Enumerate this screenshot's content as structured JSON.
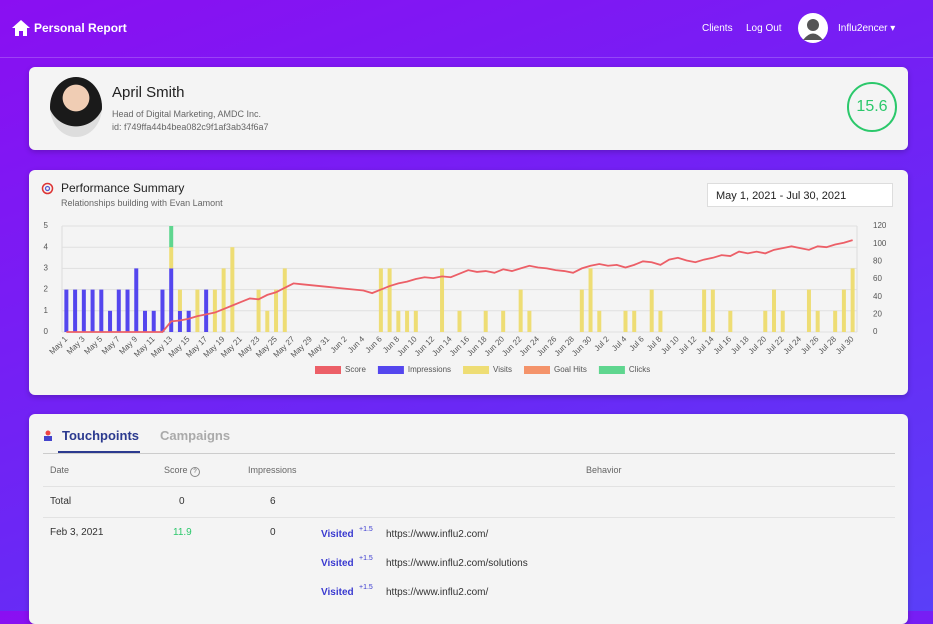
{
  "nav": {
    "brand": "Personal Report",
    "links": [
      "Clients",
      "Log Out"
    ],
    "user": "Influ2encer"
  },
  "profile": {
    "name": "April Smith",
    "role": "Head of Digital Marketing, AMDC Inc.",
    "id": "id: f749ffa44b4bea082c9f1af3ab34f6a7",
    "score": "15.6"
  },
  "date_range": "May 1, 2021 - Jul 30, 2021",
  "chart_data": {
    "type": "bar",
    "title": "Performance Summary",
    "subtitle": "Relationships building with Evan Lamont",
    "categories": [
      "May 1",
      null,
      "May 3",
      null,
      "May 5",
      null,
      "May 7",
      null,
      "May 9",
      null,
      "May 11",
      null,
      "May 13",
      null,
      "May 15",
      null,
      "May 17",
      null,
      "May 19",
      null,
      "May 21",
      null,
      "May 23",
      null,
      "May 25",
      null,
      "May 27",
      null,
      "May 29",
      null,
      "May 31",
      null,
      "Jun 2",
      null,
      "Jun 4",
      null,
      "Jun 6",
      null,
      "Jun 8",
      null,
      "Jun 10",
      null,
      "Jun 12",
      null,
      "Jun 14",
      null,
      "Jun 16",
      null,
      "Jun 18",
      null,
      "Jun 20",
      null,
      "Jun 22",
      null,
      "Jun 24",
      null,
      "Jun 26",
      null,
      "Jun 28",
      null,
      "Jun 30",
      null,
      "Jul 2",
      null,
      "Jul 4",
      null,
      "Jul 6",
      null,
      "Jul 8",
      null,
      "Jul 10",
      null,
      "Jul 12",
      null,
      "Jul 14",
      null,
      "Jul 16",
      null,
      "Jul 18",
      null,
      "Jul 20",
      null,
      "Jul 22",
      null,
      "Jul 24",
      null,
      "Jul 26",
      null,
      "Jul 28",
      null,
      "Jul 30"
    ],
    "series": [
      {
        "name": "Score",
        "type": "line",
        "axis": "y2",
        "color": "#ec5f67",
        "values": [
          0,
          0,
          0,
          0,
          0,
          0,
          0,
          0,
          0,
          0,
          0,
          0,
          12,
          13,
          15,
          18,
          20,
          22,
          26,
          30,
          34,
          38,
          37,
          42,
          45,
          50,
          55,
          54,
          53,
          52,
          51,
          50,
          49,
          48,
          47,
          44,
          48,
          52,
          55,
          57,
          60,
          62,
          61,
          63,
          62,
          66,
          70,
          68,
          69,
          67,
          71,
          69,
          72,
          75,
          73,
          72,
          70,
          69,
          67,
          72,
          75,
          77,
          75,
          76,
          73,
          76,
          80,
          79,
          76,
          82,
          84,
          81,
          79,
          82,
          84,
          87,
          86,
          91,
          89,
          91,
          89,
          93,
          95,
          97,
          95,
          93,
          97,
          96,
          99,
          101,
          104
        ]
      },
      {
        "name": "Impressions",
        "color": "#5446ee",
        "values": [
          2,
          2,
          2,
          2,
          2,
          1,
          2,
          2,
          3,
          1,
          1,
          2,
          3,
          1,
          1,
          0,
          2,
          0,
          0,
          0,
          0,
          0,
          0,
          0,
          0,
          0,
          0,
          0,
          0,
          0,
          0,
          0,
          0,
          0,
          0,
          0,
          0,
          0,
          0,
          0,
          0,
          0,
          0,
          0,
          0,
          0,
          0,
          0,
          0,
          0,
          0,
          0,
          0,
          0,
          0,
          0,
          0,
          0,
          0,
          0,
          0,
          0,
          0,
          0,
          0,
          0,
          0,
          0,
          0,
          0,
          0,
          0,
          0,
          0,
          0,
          0,
          0,
          0,
          0,
          0,
          0,
          0,
          0,
          0,
          0,
          0,
          0,
          0,
          0,
          0,
          0
        ]
      },
      {
        "name": "Visits",
        "color": "#eedd74",
        "values": [
          0,
          0,
          0,
          0,
          0,
          0,
          0,
          0,
          0,
          0,
          0,
          0,
          1,
          1,
          0,
          2,
          0,
          2,
          3,
          4,
          0,
          0,
          2,
          1,
          2,
          3,
          0,
          0,
          0,
          0,
          0,
          0,
          0,
          0,
          0,
          0,
          3,
          3,
          1,
          1,
          1,
          0,
          0,
          3,
          0,
          1,
          0,
          0,
          1,
          0,
          1,
          0,
          2,
          1,
          0,
          0,
          0,
          0,
          0,
          2,
          3,
          1,
          0,
          0,
          1,
          1,
          0,
          2,
          1,
          0,
          0,
          0,
          0,
          2,
          2,
          0,
          1,
          0,
          0,
          0,
          1,
          2,
          1,
          0,
          0,
          2,
          1,
          0,
          1,
          2,
          3
        ]
      },
      {
        "name": "Goal Hits",
        "color": "#f4936a",
        "values": [
          0,
          0,
          0,
          0,
          0,
          0,
          0,
          0,
          0,
          0,
          0,
          0,
          0,
          0,
          0,
          0,
          0,
          0,
          0,
          0,
          0,
          0,
          0,
          0,
          0,
          0,
          0,
          0,
          0,
          0,
          0,
          0,
          0,
          0,
          0,
          0,
          0,
          0,
          0,
          0,
          0,
          0,
          0,
          0,
          0,
          0,
          0,
          0,
          0,
          0,
          0,
          0,
          0,
          0,
          0,
          0,
          0,
          0,
          0,
          0,
          0,
          0,
          0,
          0,
          0,
          0,
          0,
          0,
          0,
          0,
          0,
          0,
          0,
          0,
          0,
          0,
          0,
          0,
          0,
          0,
          0,
          0,
          0,
          0,
          0,
          0,
          0,
          0,
          0,
          0,
          0
        ]
      },
      {
        "name": "Clicks",
        "color": "#5fd68f",
        "values": [
          0,
          0,
          0,
          0,
          0,
          0,
          0,
          0,
          0,
          0,
          0,
          0,
          1,
          0,
          0,
          0,
          0,
          0,
          0,
          0,
          0,
          0,
          0,
          0,
          0,
          0,
          0,
          0,
          0,
          0,
          0,
          0,
          0,
          0,
          0,
          0,
          0,
          0,
          0,
          0,
          0,
          0,
          0,
          0,
          0,
          0,
          0,
          0,
          0,
          0,
          0,
          0,
          0,
          0,
          0,
          0,
          0,
          0,
          0,
          0,
          0,
          0,
          0,
          0,
          0,
          0,
          0,
          0,
          0,
          0,
          0,
          0,
          0,
          0,
          0,
          0,
          0,
          0,
          0,
          0,
          0,
          0,
          0,
          0,
          0,
          0,
          0,
          0,
          0,
          0,
          0
        ]
      }
    ],
    "ylim": [
      0,
      5
    ],
    "yticks": [
      0,
      1,
      2,
      3,
      4,
      5
    ],
    "y2lim": [
      0,
      120
    ],
    "y2ticks": [
      0,
      20,
      40,
      60,
      80,
      100,
      120
    ],
    "grid": true,
    "stacked": true,
    "legend": "bottom"
  },
  "tabs": [
    "Touchpoints",
    "Campaigns"
  ],
  "table": {
    "headers": [
      "Date",
      "Score",
      "Impressions",
      "Behavior"
    ],
    "rows": [
      [
        "Total",
        "0",
        "6"
      ],
      [
        "Feb 3, 2021",
        "11.9",
        "0"
      ]
    ],
    "behaviors": [
      {
        "action": "Visited",
        "bonus": "+1.5",
        "url": "https://www.influ2.com/"
      },
      {
        "action": "Visited",
        "bonus": "+1.5",
        "url": "https://www.influ2.com/solutions"
      },
      {
        "action": "Visited",
        "bonus": "+1.5",
        "url": "https://www.influ2.com/"
      }
    ]
  }
}
